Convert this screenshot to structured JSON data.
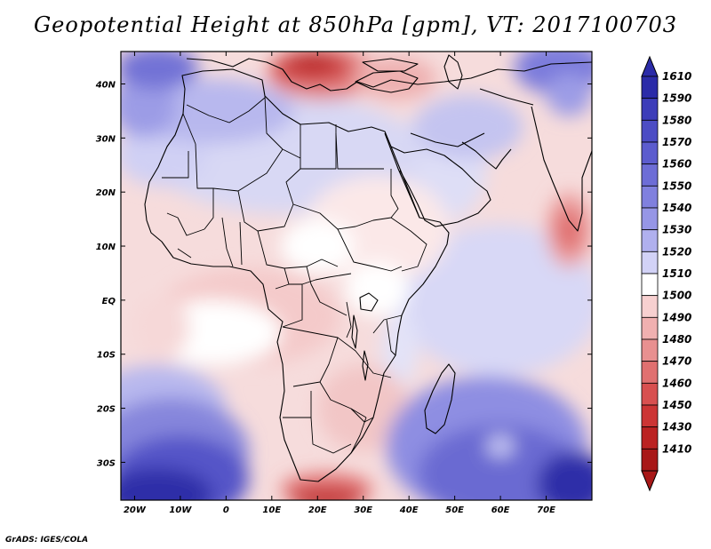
{
  "title": "Geopotential Height at 850hPa [gpm], VT: 2017100703",
  "credit": "GrADS: IGES/COLA",
  "map": {
    "projection": "lat-lon",
    "lon_range": [
      -23,
      80
    ],
    "lat_range": [
      -37,
      46
    ],
    "lat_ticks": [
      {
        "value": 40,
        "label": "40N"
      },
      {
        "value": 30,
        "label": "30N"
      },
      {
        "value": 20,
        "label": "20N"
      },
      {
        "value": 10,
        "label": "10N"
      },
      {
        "value": 0,
        "label": "EQ"
      },
      {
        "value": -10,
        "label": "10S"
      },
      {
        "value": -20,
        "label": "20S"
      },
      {
        "value": -30,
        "label": "30S"
      }
    ],
    "lon_ticks": [
      {
        "value": -20,
        "label": "20W"
      },
      {
        "value": -10,
        "label": "10W"
      },
      {
        "value": 0,
        "label": "0"
      },
      {
        "value": 10,
        "label": "10E"
      },
      {
        "value": 20,
        "label": "20E"
      },
      {
        "value": 30,
        "label": "30E"
      },
      {
        "value": 40,
        "label": "40E"
      },
      {
        "value": 50,
        "label": "50E"
      },
      {
        "value": 60,
        "label": "60E"
      },
      {
        "value": 70,
        "label": "70E"
      }
    ]
  },
  "colorbar": {
    "levels": [
      "1610",
      "1590",
      "1580",
      "1570",
      "1560",
      "1550",
      "1540",
      "1530",
      "1520",
      "1510",
      "1500",
      "1490",
      "1480",
      "1470",
      "1460",
      "1450",
      "1430",
      "1410"
    ],
    "colors": [
      "#2b2ba8",
      "#3d3db9",
      "#4c4cc4",
      "#5c5cce",
      "#6d6dd6",
      "#8080de",
      "#9696e6",
      "#b0b0ee",
      "#d2d2f6",
      "#ffffff",
      "#f7d0d0",
      "#f0b0b0",
      "#e89090",
      "#e07070",
      "#d85050",
      "#cc3535",
      "#bb2222",
      "#a81818"
    ]
  },
  "field": {
    "background": "#f6dcdc",
    "blobs": [
      {
        "lon": 60,
        "lat": 0,
        "rx": 22,
        "ry": 14,
        "color": "#d8d8f6"
      },
      {
        "lon": 45,
        "lat": 24,
        "rx": 12,
        "ry": 10,
        "color": "#dedef6"
      },
      {
        "lon": 53,
        "lat": 32,
        "rx": 12,
        "ry": 6,
        "color": "#c4c4f0"
      },
      {
        "lon": 13,
        "lat": 27,
        "rx": 30,
        "ry": 11,
        "color": "#d8d8f4"
      },
      {
        "lon": -14,
        "lat": 27,
        "rx": 10,
        "ry": 6,
        "color": "#d0d0f4"
      },
      {
        "lon": -3,
        "lat": 35,
        "rx": 18,
        "ry": 6,
        "color": "#b8b8ee"
      },
      {
        "lon": -18,
        "lat": 36,
        "rx": 7,
        "ry": 6,
        "color": "#9c9ce6"
      },
      {
        "lon": -15,
        "lat": 43,
        "rx": 9,
        "ry": 4,
        "color": "#7272d6"
      },
      {
        "lon": 73,
        "lat": 43,
        "rx": 10,
        "ry": 5,
        "color": "#7c7cdc"
      },
      {
        "lon": 75,
        "lat": 38,
        "rx": 5,
        "ry": 4,
        "color": "#9c9ce6"
      },
      {
        "lon": 21,
        "lat": 42,
        "rx": 12,
        "ry": 5,
        "color": "#e58585"
      },
      {
        "lon": 19,
        "lat": 43,
        "rx": 9,
        "ry": 3,
        "color": "#d04848"
      },
      {
        "lon": 19,
        "lat": 44,
        "rx": 5,
        "ry": 2,
        "color": "#bc2a2a"
      },
      {
        "lon": 37,
        "lat": 41,
        "rx": 9,
        "ry": 4,
        "color": "#eeb0b0"
      },
      {
        "lon": 75,
        "lat": 13,
        "rx": 5,
        "ry": 7,
        "color": "#eca0a0"
      },
      {
        "lon": 75,
        "lat": 13,
        "rx": 3,
        "ry": 4,
        "color": "#e07070"
      },
      {
        "lon": 33,
        "lat": 13,
        "rx": 16,
        "ry": 10,
        "color": "#fbe8e8"
      },
      {
        "lon": 20,
        "lat": 10,
        "rx": 8,
        "ry": 5,
        "color": "#ffffff"
      },
      {
        "lon": 33,
        "lat": 2,
        "rx": 7,
        "ry": 5,
        "color": "#ffffff"
      },
      {
        "lon": 38,
        "lat": -9,
        "rx": 4,
        "ry": 7,
        "color": "#e3e3f8"
      },
      {
        "lon": 30,
        "lat": -20,
        "rx": 10,
        "ry": 8,
        "color": "#f2c6c6"
      },
      {
        "lon": 5,
        "lat": -3,
        "rx": 20,
        "ry": 9,
        "color": "#f4caca"
      },
      {
        "lon": -3,
        "lat": -6,
        "rx": 15,
        "ry": 6,
        "color": "#ffffff"
      },
      {
        "lon": -14,
        "lat": -5,
        "rx": 6,
        "ry": 6,
        "color": "#f6d8d8"
      },
      {
        "lon": -15,
        "lat": -20,
        "rx": 15,
        "ry": 8,
        "color": "#b8b8ee"
      },
      {
        "lon": -12,
        "lat": -28,
        "rx": 17,
        "ry": 10,
        "color": "#8686dc"
      },
      {
        "lon": -10,
        "lat": -33,
        "rx": 15,
        "ry": 8,
        "color": "#5454c8"
      },
      {
        "lon": -15,
        "lat": -36,
        "rx": 12,
        "ry": 5,
        "color": "#2f2fa8"
      },
      {
        "lon": 57,
        "lat": -27,
        "rx": 22,
        "ry": 13,
        "color": "#8e8ee2"
      },
      {
        "lon": 60,
        "lat": -32,
        "rx": 18,
        "ry": 9,
        "color": "#6a6ad2"
      },
      {
        "lon": 76,
        "lat": -34,
        "rx": 8,
        "ry": 6,
        "color": "#2f2fa8"
      },
      {
        "lon": 60,
        "lat": -27,
        "rx": 3,
        "ry": 2,
        "color": "#c8c8f4"
      },
      {
        "lon": 22,
        "lat": -35,
        "rx": 10,
        "ry": 3,
        "color": "#e07070"
      },
      {
        "lon": 22,
        "lat": -37,
        "rx": 8,
        "ry": 2,
        "color": "#c03030"
      }
    ]
  }
}
